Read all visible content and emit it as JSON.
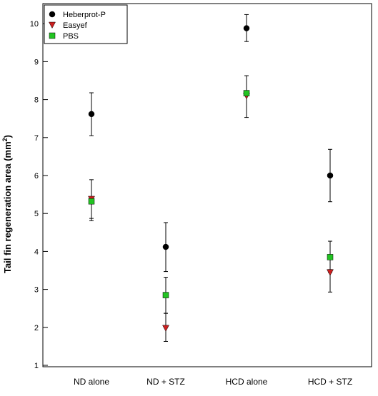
{
  "chart_data": {
    "type": "scatter",
    "ylabel": "Tail fin regeneration area (mm",
    "ylabel_sup": "2",
    "ylabel_close": ")",
    "ylim": [
      1,
      10.5
    ],
    "yticks": [
      1,
      2,
      3,
      4,
      5,
      6,
      7,
      8,
      9,
      10
    ],
    "categories": [
      "ND alone",
      "ND + STZ",
      "HCD alone",
      "HCD + STZ"
    ],
    "legend_position": "top-left",
    "grid": false,
    "series": [
      {
        "name": "Heberprot-P",
        "marker": "circle",
        "color": "#000000",
        "values": [
          7.62,
          4.12,
          9.88,
          6.0
        ],
        "error_upper": [
          8.18,
          4.76,
          10.24,
          6.69
        ],
        "error_lower": [
          7.05,
          3.47,
          9.53,
          5.31
        ]
      },
      {
        "name": "Easyef",
        "marker": "triangle-down",
        "color": "#cc1f1f",
        "values": [
          5.38,
          1.98,
          8.1,
          3.45
        ],
        "error_upper": [
          5.89,
          2.37,
          8.18,
          3.52
        ],
        "error_lower": [
          4.81,
          1.63,
          7.53,
          2.93
        ]
      },
      {
        "name": "PBS",
        "marker": "square",
        "color": "#22c422",
        "values": [
          5.32,
          2.85,
          8.17,
          3.85
        ],
        "error_upper": [
          5.38,
          3.32,
          8.63,
          4.27
        ],
        "error_lower": [
          4.87,
          2.37,
          8.1,
          3.45
        ]
      }
    ]
  }
}
